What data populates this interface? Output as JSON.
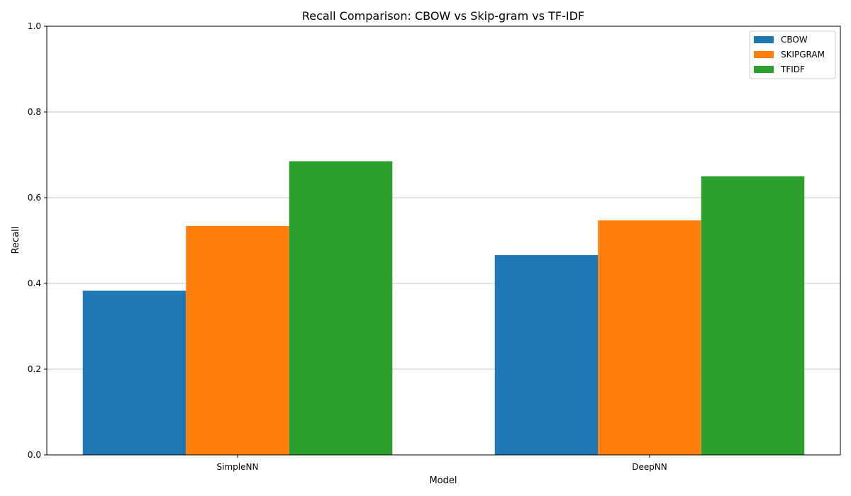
{
  "chart_data": {
    "type": "bar",
    "title": "Recall Comparison: CBOW vs Skip-gram vs TF-IDF",
    "xlabel": "Model",
    "ylabel": "Recall",
    "ylim": [
      0,
      1.0
    ],
    "yticks": [
      "0.0",
      "0.2",
      "0.4",
      "0.6",
      "0.8",
      "1.0"
    ],
    "grid": "horizontal",
    "legend_position": "top-right",
    "categories": [
      "SimpleNN",
      "DeepNN"
    ],
    "series": [
      {
        "name": "CBOW",
        "color": "#1f77b4",
        "values": [
          0.383,
          0.466
        ]
      },
      {
        "name": "SKIPGRAM",
        "color": "#ff7f0e",
        "values": [
          0.534,
          0.547
        ]
      },
      {
        "name": "TFIDF",
        "color": "#2ca02c",
        "values": [
          0.685,
          0.65
        ]
      }
    ]
  }
}
